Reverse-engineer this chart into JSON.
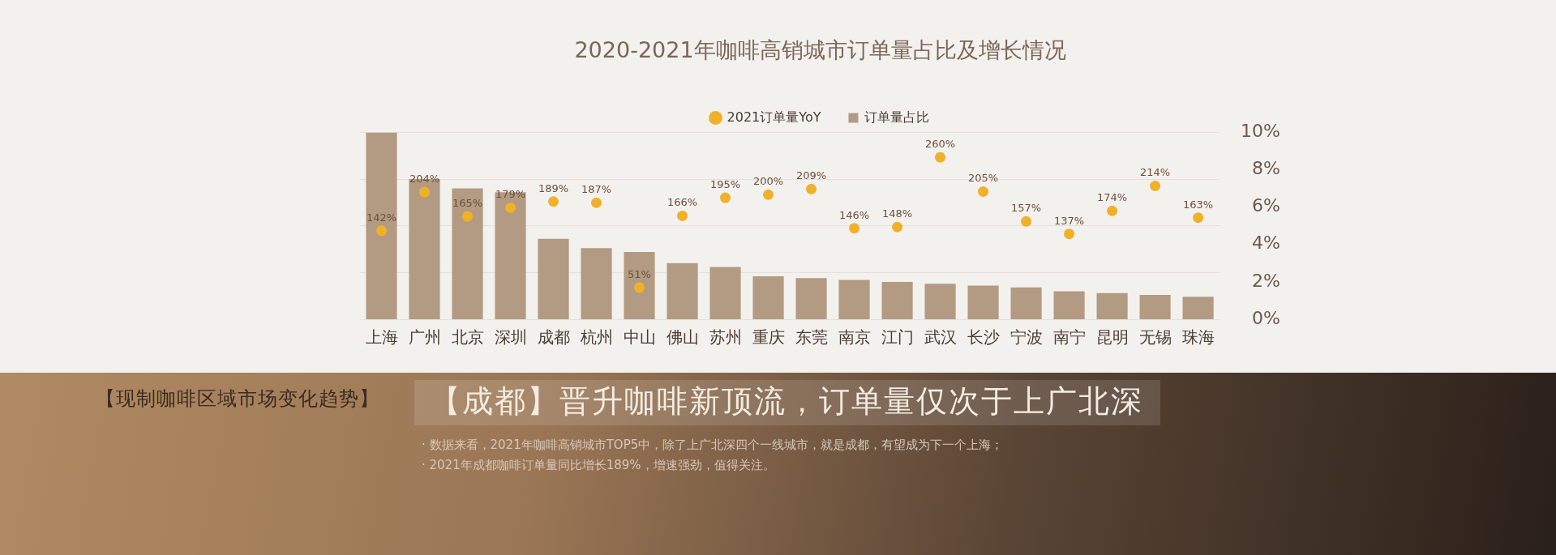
{
  "chart_data": {
    "type": "bar",
    "title": "2020-2021年咖啡高销城市订单量占比及增长情况",
    "categories": [
      "上海",
      "广州",
      "北京",
      "深圳",
      "成都",
      "杭州",
      "中山",
      "佛山",
      "苏州",
      "重庆",
      "东莞",
      "南京",
      "江门",
      "武汉",
      "长沙",
      "宁波",
      "南宁",
      "昆明",
      "无锡",
      "珠海"
    ],
    "series": [
      {
        "name": "2021订单量YoY",
        "type": "scatter",
        "axis": "y2",
        "color": "#f0b129",
        "values": [
          142,
          204,
          165,
          179,
          189,
          187,
          51,
          166,
          195,
          200,
          209,
          146,
          148,
          260,
          205,
          157,
          137,
          174,
          214,
          163
        ],
        "value_labels": [
          "142%",
          "204%",
          "165%",
          "179%",
          "189%",
          "187%",
          "51%",
          "166%",
          "195%",
          "200%",
          "209%",
          "146%",
          "148%",
          "260%",
          "205%",
          "157%",
          "137%",
          "174%",
          "214%",
          "163%"
        ]
      },
      {
        "name": "订单量占比",
        "color": "#b39a83",
        "values": [
          10.0,
          7.5,
          7.0,
          6.8,
          4.3,
          3.8,
          3.6,
          3.0,
          2.8,
          2.3,
          2.2,
          2.1,
          2.0,
          1.9,
          1.8,
          1.7,
          1.5,
          1.4,
          1.3,
          1.2
        ]
      }
    ],
    "ylim": [
      0,
      10
    ],
    "yticks": [
      {
        "value": 0,
        "label": "0%"
      },
      {
        "value": 2,
        "label": "2%"
      },
      {
        "value": 4,
        "label": "4%"
      },
      {
        "value": 6,
        "label": "6%"
      },
      {
        "value": 8,
        "label": "8%"
      },
      {
        "value": 10,
        "label": "10%"
      }
    ],
    "y2lim": [
      0,
      300
    ],
    "y2ticks": [
      {
        "value": 0,
        "label": null
      },
      {
        "value": 75,
        "label": null
      },
      {
        "value": 150,
        "label": null
      },
      {
        "value": 225,
        "label": null
      },
      {
        "value": 300,
        "label": null
      }
    ],
    "grid": "y",
    "legend": "top",
    "marker": "circle",
    "annotations": [
      "【现制咖啡区域市场变化趋势】",
      "【成都】晋升咖啡新顶流，订单量仅次于上广北深",
      "· 数据来看，2021年咖啡高销城市TOP5中，除了上广北深四个一线城市，就是成都，有望成为下一个上海；",
      "· 2021年成都咖啡订单量同比增长189%，增速强劲，值得关注。"
    ]
  }
}
